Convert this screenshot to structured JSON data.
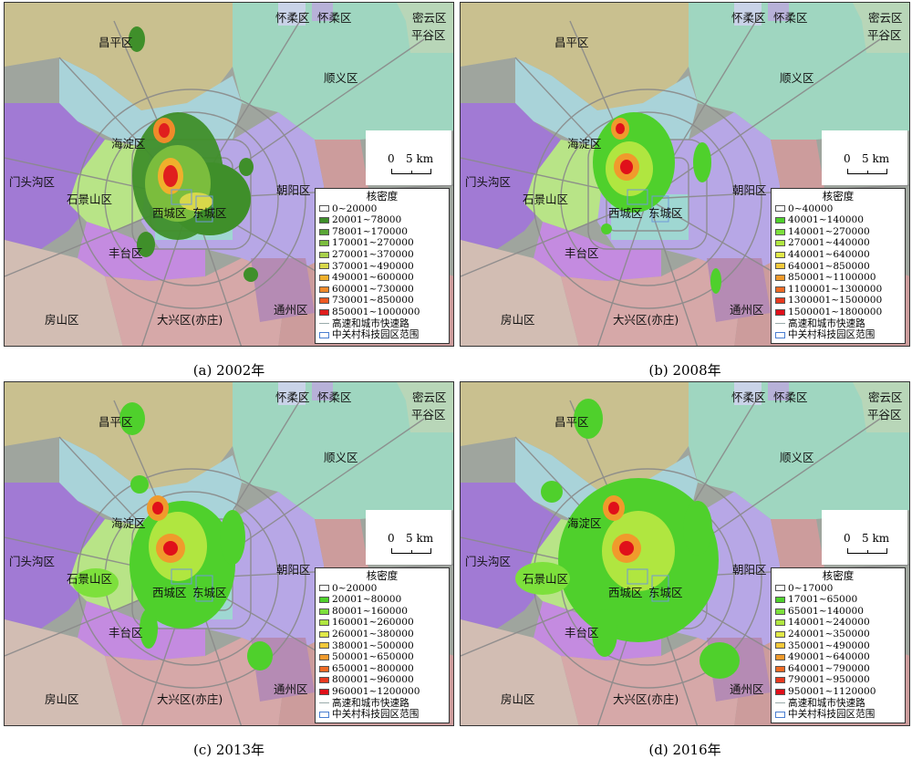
{
  "panels": [
    {
      "caption": "(a) 2002年",
      "legend": {
        "title": "核密度",
        "items": [
          "0~20000",
          "20001~78000",
          "78001~170000",
          "170001~270000",
          "270001~370000",
          "370001~490000",
          "490001~600000",
          "600001~730000",
          "730001~850000",
          "850001~1000000"
        ],
        "road_label": "高速和城市快速路",
        "park_label": "中关村科技园区范围"
      }
    },
    {
      "caption": "(b) 2008年",
      "legend": {
        "title": "核密度",
        "items": [
          "0~40000",
          "40001~140000",
          "140001~270000",
          "270001~440000",
          "440001~640000",
          "640001~850000",
          "850001~1100000",
          "1100001~1300000",
          "1300001~1500000",
          "1500001~1800000"
        ],
        "road_label": "高速和城市快速路",
        "park_label": "中关村科技园区范围"
      }
    },
    {
      "caption": "(c) 2013年",
      "legend": {
        "title": "核密度",
        "items": [
          "0~20000",
          "20001~80000",
          "80001~160000",
          "160001~260000",
          "260001~380000",
          "380001~500000",
          "500001~650000",
          "650001~800000",
          "800001~960000",
          "960001~1200000"
        ],
        "road_label": "高速和城市快速路",
        "park_label": "中关村科技园区范围"
      }
    },
    {
      "caption": "(d) 2016年",
      "legend": {
        "title": "核密度",
        "items": [
          "0~17000",
          "17001~65000",
          "65001~140000",
          "140001~240000",
          "240001~350000",
          "350001~490000",
          "490001~640000",
          "640001~790000",
          "790001~950000",
          "950001~1120000"
        ],
        "road_label": "高速和城市快速路",
        "park_label": "中关村科技园区范围"
      }
    }
  ],
  "districts": {
    "huairou": "怀柔区",
    "miyun": "密云区",
    "pinggu": "平谷区",
    "changping": "昌平区",
    "shunyi": "顺义区",
    "haidian": "海淀区",
    "mentougou": "门头沟区",
    "shijingshan": "石景山区",
    "chaoyang": "朝阳区",
    "xicheng": "西城区",
    "dongcheng": "东城区",
    "fengtai": "丰台区",
    "tongzhou": "通州区",
    "fangshan": "房山区",
    "daxing": "大兴区(亦庄)"
  },
  "scale": {
    "zero": "0",
    "dist": "5 km"
  },
  "colors": {
    "low_2002": [
      "#ffffff",
      "#3f8f2a",
      "#5aa637",
      "#7bbd3d",
      "#a8d04a",
      "#d8d84a",
      "#f0b02c",
      "#f08a2a",
      "#ee5a22",
      "#e01e1e"
    ],
    "high": [
      "#ffffff",
      "#4fd02c",
      "#7de03c",
      "#b0e640",
      "#e0e848",
      "#f2c83a",
      "#f09a2c",
      "#ee6a24",
      "#e83a1f",
      "#e0101a"
    ]
  }
}
